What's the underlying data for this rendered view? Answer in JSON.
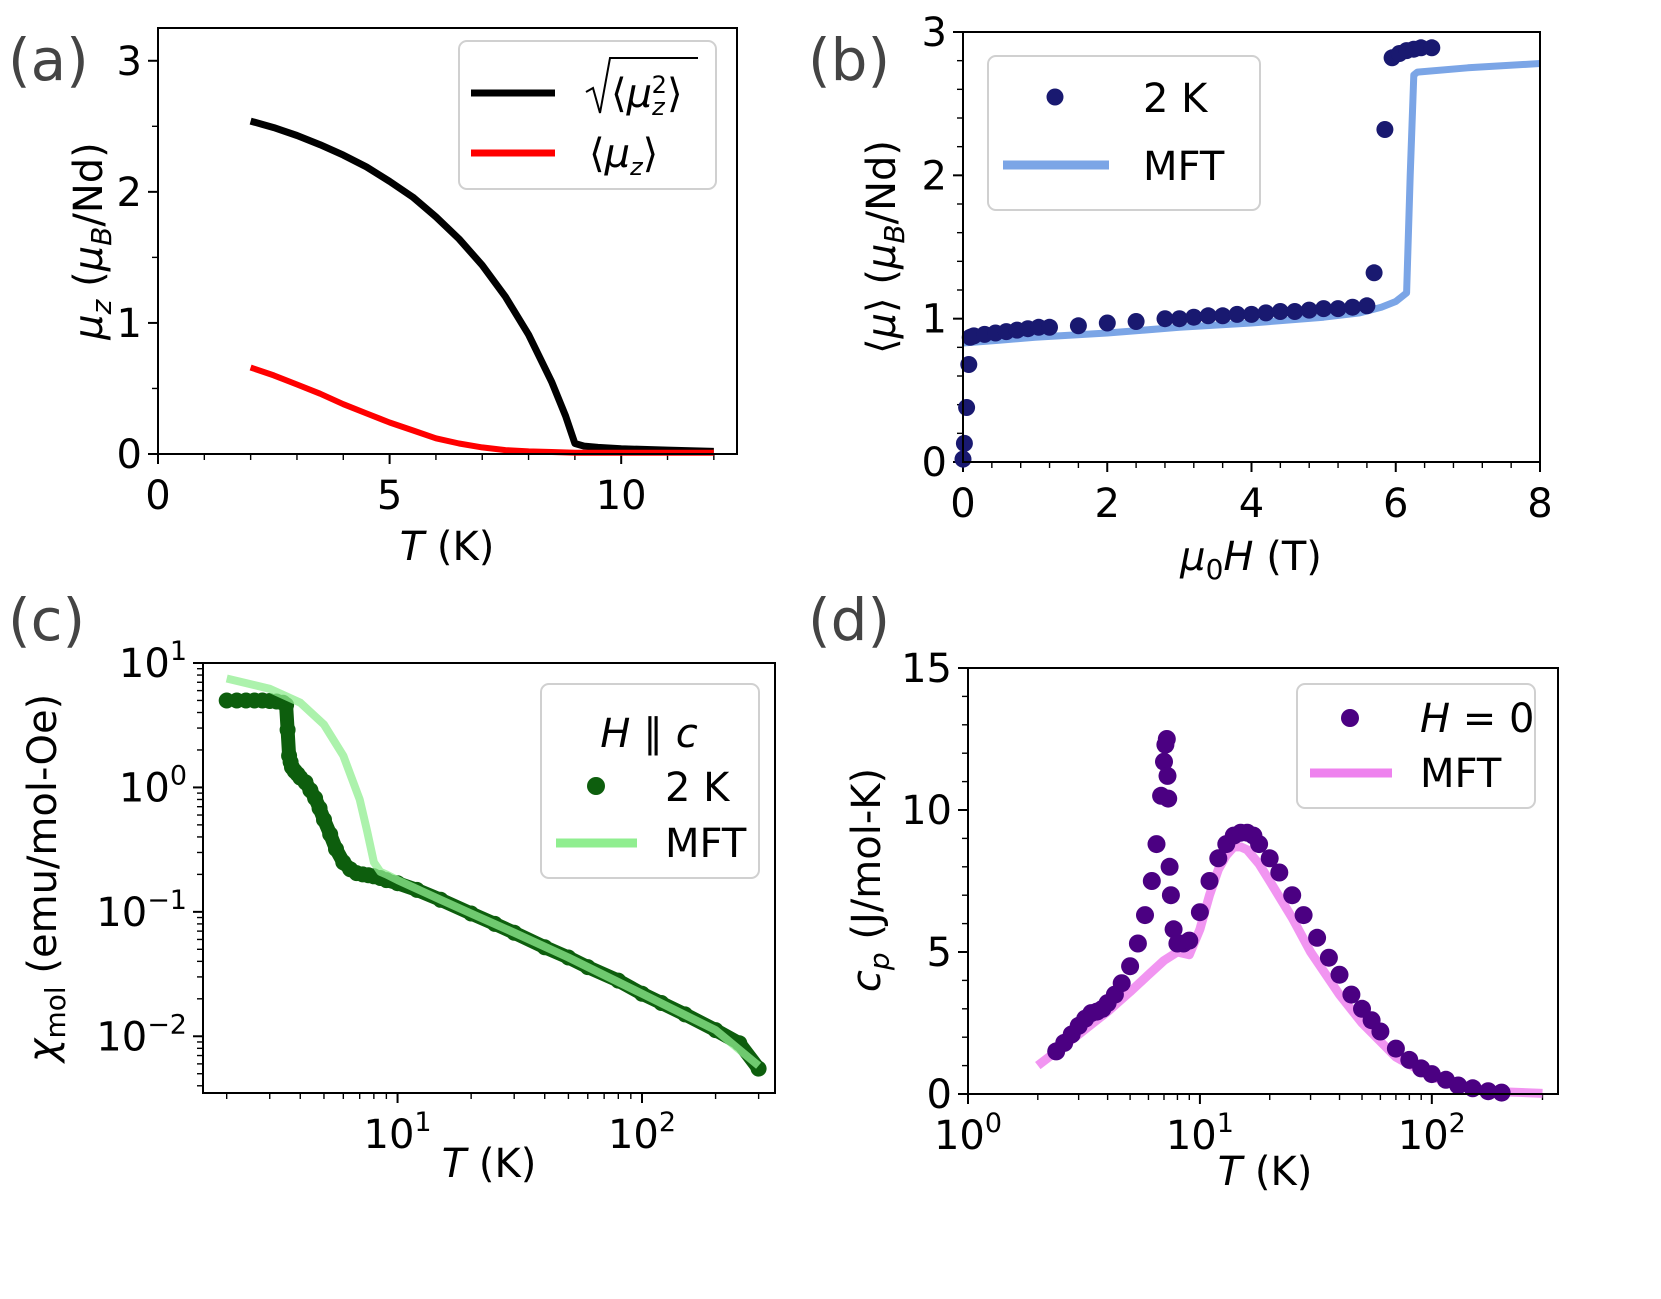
{
  "chart_data": [
    {
      "panel": "(a)",
      "type": "line",
      "xlabel": "T (K)",
      "ylabel": "μz (μB/Nd)",
      "xlim": [
        0,
        12.5
      ],
      "ylim": [
        0,
        3.25
      ],
      "xticks": [
        0,
        5,
        10
      ],
      "yticks": [
        0,
        1,
        2,
        3
      ],
      "legend_position": "top-right",
      "series": [
        {
          "name": "√⟨μz²⟩",
          "color": "#000000",
          "x": [
            2,
            2.5,
            3,
            3.5,
            4,
            4.5,
            5,
            5.5,
            6,
            6.5,
            7,
            7.5,
            8,
            8.5,
            8.8,
            9.0,
            9.2,
            9.5,
            10,
            11,
            12
          ],
          "y": [
            2.54,
            2.49,
            2.43,
            2.36,
            2.28,
            2.19,
            2.08,
            1.96,
            1.81,
            1.64,
            1.44,
            1.2,
            0.91,
            0.55,
            0.29,
            0.08,
            0.06,
            0.05,
            0.04,
            0.03,
            0.02
          ]
        },
        {
          "name": "⟨μz⟩",
          "color": "#ff0000",
          "x": [
            2,
            2.5,
            3,
            3.5,
            4,
            4.5,
            5,
            5.5,
            6,
            6.5,
            7,
            7.5,
            8,
            8.5,
            9,
            10,
            11,
            12
          ],
          "y": [
            0.66,
            0.6,
            0.53,
            0.46,
            0.38,
            0.31,
            0.24,
            0.18,
            0.12,
            0.08,
            0.05,
            0.03,
            0.02,
            0.015,
            0.01,
            0.01,
            0.01,
            0.01
          ]
        }
      ]
    },
    {
      "panel": "(b)",
      "type": "scatter+line",
      "xlabel": "μ0H (T)",
      "ylabel": "⟨μ⟩ (μB/Nd)",
      "xlim": [
        0,
        8
      ],
      "ylim": [
        0,
        3
      ],
      "xticks": [
        0,
        2,
        4,
        6,
        8
      ],
      "yticks": [
        0,
        1,
        2,
        3
      ],
      "legend_position": "top-left",
      "series": [
        {
          "name": "2 K",
          "color": "#191970",
          "x": [
            0.0,
            0.02,
            0.05,
            0.08,
            0.1,
            0.15,
            0.3,
            0.45,
            0.6,
            0.75,
            0.9,
            1.05,
            1.2,
            1.6,
            2.0,
            2.4,
            2.8,
            3.0,
            3.2,
            3.4,
            3.6,
            3.8,
            4.0,
            4.2,
            4.4,
            4.6,
            4.8,
            5.0,
            5.2,
            5.4,
            5.6,
            5.7,
            5.85,
            5.95,
            6.05,
            6.15,
            6.25,
            6.35,
            6.5
          ],
          "y": [
            0.02,
            0.13,
            0.38,
            0.68,
            0.87,
            0.88,
            0.89,
            0.9,
            0.91,
            0.92,
            0.93,
            0.94,
            0.94,
            0.95,
            0.97,
            0.98,
            1.0,
            1.0,
            1.01,
            1.02,
            1.02,
            1.03,
            1.03,
            1.04,
            1.05,
            1.05,
            1.06,
            1.07,
            1.07,
            1.08,
            1.09,
            1.32,
            2.32,
            2.82,
            2.85,
            2.87,
            2.88,
            2.89,
            2.89
          ]
        },
        {
          "name": "MFT",
          "color": "#7ba5e6",
          "x": [
            0,
            0.5,
            1,
            2,
            3,
            4,
            5,
            5.5,
            5.8,
            6.0,
            6.15,
            6.2,
            6.25,
            6.3,
            7,
            8
          ],
          "y": [
            0.83,
            0.85,
            0.87,
            0.9,
            0.94,
            0.97,
            1.01,
            1.04,
            1.08,
            1.12,
            1.18,
            2.0,
            2.7,
            2.72,
            2.75,
            2.78
          ]
        }
      ]
    },
    {
      "panel": "(c)",
      "type": "scatter+line",
      "xscale": "log",
      "yscale": "log",
      "xlabel": "T (K)",
      "ylabel": "χmol (emu/mol-Oe)",
      "xlim": [
        1.6,
        350
      ],
      "ylim": [
        0.0035,
        10
      ],
      "xticks": [
        10,
        100
      ],
      "xtick_labels": [
        "10¹",
        "10²"
      ],
      "yticks": [
        0.01,
        0.1,
        1,
        10
      ],
      "ytick_labels": [
        "10⁻²",
        "10⁻¹",
        "10⁰",
        "10¹"
      ],
      "legend_title": "H ∥ c",
      "legend_position": "top-right",
      "series": [
        {
          "name": "2 K",
          "color": "#0d5e0d",
          "x": [
            2.0,
            2.2,
            2.4,
            2.6,
            2.8,
            3.0,
            3.2,
            3.4,
            3.5,
            3.55,
            3.6,
            3.65,
            3.7,
            3.8,
            3.9,
            4.0,
            4.2,
            4.4,
            4.6,
            4.8,
            5.0,
            5.3,
            5.6,
            6.0,
            6.4,
            6.8,
            7.2,
            7.6,
            8,
            8.5,
            9,
            10,
            12,
            15,
            20,
            25,
            30,
            40,
            50,
            60,
            80,
            100,
            120,
            150,
            200,
            250,
            300
          ],
          "y": [
            5.0,
            5.0,
            5.0,
            5.0,
            5.0,
            4.95,
            4.9,
            4.8,
            4.6,
            2.9,
            1.8,
            1.6,
            1.45,
            1.35,
            1.28,
            1.2,
            1.1,
            0.95,
            0.82,
            0.68,
            0.55,
            0.42,
            0.32,
            0.25,
            0.22,
            0.205,
            0.2,
            0.197,
            0.193,
            0.187,
            0.18,
            0.17,
            0.15,
            0.125,
            0.097,
            0.08,
            0.068,
            0.052,
            0.043,
            0.036,
            0.028,
            0.022,
            0.0185,
            0.015,
            0.0112,
            0.0088,
            0.0055
          ]
        },
        {
          "name": "MFT",
          "color": "#90ee90",
          "x": [
            2,
            3,
            4,
            5,
            6,
            7,
            7.5,
            8,
            8.5,
            9,
            10,
            15,
            20,
            30,
            50,
            100,
            200,
            300
          ],
          "y": [
            7.5,
            6.2,
            4.8,
            3.2,
            1.8,
            0.8,
            0.45,
            0.25,
            0.21,
            0.2,
            0.18,
            0.125,
            0.097,
            0.068,
            0.043,
            0.022,
            0.0112,
            0.0058
          ]
        }
      ]
    },
    {
      "panel": "(d)",
      "type": "scatter+line",
      "xscale": "log",
      "xlabel": "T (K)",
      "ylabel": "cp (J/mol-K)",
      "xlim": [
        1,
        350
      ],
      "ylim": [
        0,
        15
      ],
      "xticks": [
        1,
        10,
        100
      ],
      "xtick_labels": [
        "10⁰",
        "10¹",
        "10²"
      ],
      "yticks": [
        0,
        5,
        10,
        15
      ],
      "legend_position": "top-right",
      "series": [
        {
          "name": "H = 0",
          "color": "#4b0082",
          "x": [
            2.4,
            2.6,
            2.8,
            3.0,
            3.2,
            3.4,
            3.6,
            3.8,
            4.0,
            4.3,
            4.6,
            5.0,
            5.4,
            5.8,
            6.2,
            6.5,
            6.8,
            7.0,
            7.1,
            7.2,
            7.25,
            7.3,
            7.4,
            7.5,
            7.7,
            8.0,
            8.5,
            9.0,
            10,
            11,
            12,
            13,
            14,
            15,
            16,
            17,
            18,
            20,
            22,
            25,
            28,
            32,
            36,
            40,
            45,
            50,
            55,
            60,
            70,
            80,
            90,
            100,
            115,
            130,
            150,
            175,
            200
          ],
          "y": [
            1.5,
            1.8,
            2.1,
            2.4,
            2.65,
            2.85,
            2.9,
            3.0,
            3.2,
            3.5,
            3.9,
            4.5,
            5.3,
            6.3,
            7.5,
            8.8,
            10.5,
            11.7,
            12.3,
            12.5,
            11.2,
            10.4,
            8.0,
            7.0,
            5.8,
            5.3,
            5.3,
            5.4,
            6.4,
            7.5,
            8.3,
            8.8,
            9.1,
            9.2,
            9.2,
            9.1,
            8.8,
            8.3,
            7.8,
            7.0,
            6.3,
            5.5,
            4.8,
            4.2,
            3.5,
            3.0,
            2.6,
            2.2,
            1.6,
            1.2,
            0.9,
            0.7,
            0.5,
            0.3,
            0.2,
            0.1,
            0.05
          ]
        },
        {
          "name": "MFT",
          "color": "#ee82ee",
          "x": [
            2,
            3,
            4,
            5,
            6,
            7,
            8,
            9,
            10,
            11,
            12,
            13,
            14,
            15,
            16,
            18,
            20,
            25,
            30,
            40,
            50,
            70,
            100,
            150,
            200,
            300
          ],
          "y": [
            1.0,
            2.1,
            2.9,
            3.6,
            4.2,
            4.7,
            5.0,
            4.9,
            5.8,
            7.0,
            7.9,
            8.4,
            8.7,
            8.7,
            8.6,
            8.1,
            7.5,
            6.2,
            5.0,
            3.5,
            2.5,
            1.3,
            0.6,
            0.2,
            0.08,
            0.02
          ]
        }
      ]
    }
  ]
}
